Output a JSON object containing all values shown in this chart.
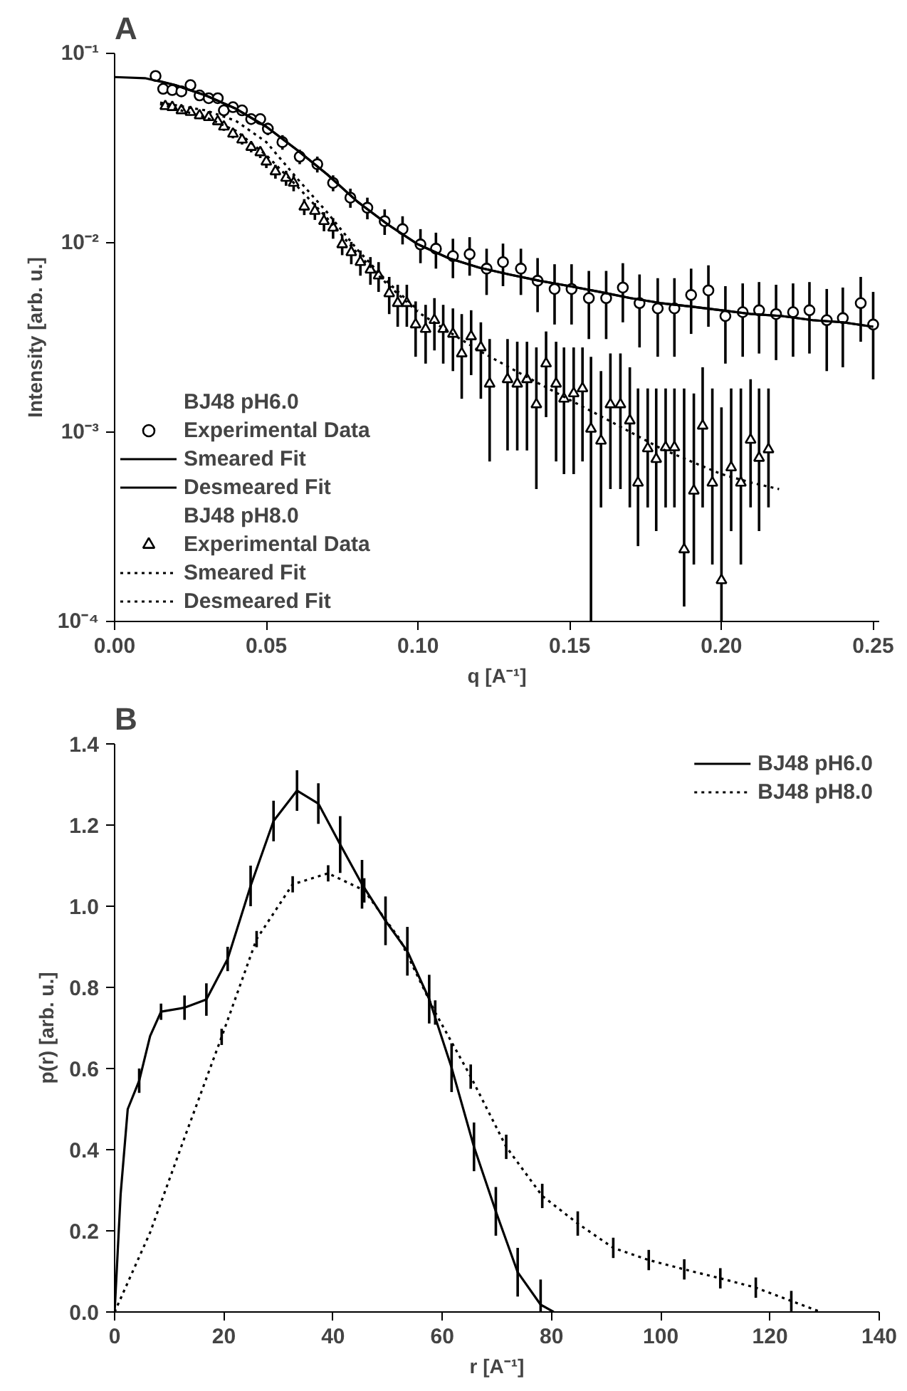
{
  "chart_data": [
    {
      "type": "scatter",
      "title": "A",
      "xlabel": "q [A⁻¹]",
      "ylabel": "Intensity [arb. u.]",
      "log": "y",
      "xlim": [
        0,
        0.252
      ],
      "ylim": [
        0.0001,
        0.1
      ],
      "xticks": [
        {
          "value": 0,
          "label": "0.00"
        },
        {
          "value": 0.05,
          "label": "0.05"
        },
        {
          "value": 0.1,
          "label": "0.10"
        },
        {
          "value": 0.15,
          "label": "0.15"
        },
        {
          "value": 0.2,
          "label": "0.20"
        },
        {
          "value": 0.25,
          "label": "0.25"
        }
      ],
      "yticks": [
        {
          "value": 0.0001,
          "label": "10⁻⁴"
        },
        {
          "value": 0.001,
          "label": "10⁻³"
        },
        {
          "value": 0.01,
          "label": "10⁻²"
        },
        {
          "value": 0.1,
          "label": "10⁻¹"
        }
      ],
      "legend": "bottom left",
      "legend_title": [
        "BJ48 pH6.0",
        "BJ48 pH8.0"
      ],
      "grid": false,
      "series": [
        {
          "name": "Experimental Data",
          "marker": "circle",
          "color": "#000000",
          "x": [
            0.0135,
            0.016,
            0.019,
            0.022,
            0.025,
            0.028,
            0.031,
            0.034,
            0.036,
            0.039,
            0.042,
            0.045,
            0.048,
            0.0505,
            0.0553,
            0.061,
            0.0668,
            0.072,
            0.0777,
            0.0833,
            0.089,
            0.0949,
            0.1008,
            0.1059,
            0.1115,
            0.117,
            0.1226,
            0.128,
            0.1339,
            0.1394,
            0.145,
            0.1506,
            0.1563,
            0.162,
            0.1675,
            0.173,
            0.179,
            0.1845,
            0.19,
            0.1957,
            0.2013,
            0.207,
            0.2124,
            0.218,
            0.2236,
            0.229,
            0.2347,
            0.24,
            0.2459,
            0.25
          ],
          "values": [
            0.076,
            0.065,
            0.064,
            0.063,
            0.068,
            0.06,
            0.058,
            0.058,
            0.05,
            0.052,
            0.05,
            0.045,
            0.045,
            0.04,
            0.034,
            0.0285,
            0.026,
            0.0207,
            0.0173,
            0.0153,
            0.013,
            0.0118,
            0.0098,
            0.0093,
            0.0085,
            0.0087,
            0.0073,
            0.0079,
            0.0073,
            0.0063,
            0.0057,
            0.0057,
            0.0051,
            0.0051,
            0.0058,
            0.0048,
            0.0045,
            0.0045,
            0.0053,
            0.0056,
            0.0041,
            0.0043,
            0.0044,
            0.0042,
            0.0043,
            0.0044,
            0.0039,
            0.004,
            0.0048,
            0.0037
          ],
          "errors": [
            0.003,
            0.003,
            0.003,
            0.003,
            0.003,
            0.003,
            0.003,
            0.003,
            0.003,
            0.003,
            0.003,
            0.003,
            0.003,
            0.003,
            0.003,
            0.0025,
            0.0025,
            0.002,
            0.002,
            0.002,
            0.002,
            0.002,
            0.002,
            0.002,
            0.002,
            0.002,
            0.002,
            0.002,
            0.002,
            0.002,
            0.002,
            0.002,
            0.002,
            0.002,
            0.002,
            0.002,
            0.002,
            0.002,
            0.002,
            0.002,
            0.0018,
            0.0018,
            0.0018,
            0.0018,
            0.0018,
            0.0018,
            0.0018,
            0.0018,
            0.0018,
            0.0018
          ]
        },
        {
          "name": "Smeared Fit",
          "type": "line",
          "line_style": "solid",
          "color": "#000000",
          "x": [
            0.014,
            0.02,
            0.03,
            0.04,
            0.05,
            0.06,
            0.07,
            0.08,
            0.09,
            0.1,
            0.11,
            0.12,
            0.13,
            0.14,
            0.15,
            0.16,
            0.17,
            0.18,
            0.19,
            0.2,
            0.21,
            0.22,
            0.23,
            0.24,
            0.25
          ],
          "values": [
            0.072,
            0.068,
            0.06,
            0.051,
            0.041,
            0.031,
            0.023,
            0.0165,
            0.0125,
            0.0098,
            0.0083,
            0.0074,
            0.0068,
            0.0063,
            0.0059,
            0.0055,
            0.0051,
            0.0048,
            0.0046,
            0.0044,
            0.0042,
            0.0041,
            0.0039,
            0.0038,
            0.0036
          ]
        },
        {
          "name": "Desmeared Fit",
          "type": "line",
          "line_style": "solid",
          "color": "#000000",
          "x": [
            0,
            0.01,
            0.02,
            0.03,
            0.04,
            0.05,
            0.06,
            0.07,
            0.08,
            0.09,
            0.1,
            0.11,
            0.12,
            0.13,
            0.14,
            0.15,
            0.16,
            0.17,
            0.18,
            0.19,
            0.2,
            0.21,
            0.22,
            0.23,
            0.24,
            0.25
          ],
          "values": [
            0.075,
            0.074,
            0.068,
            0.06,
            0.051,
            0.041,
            0.031,
            0.023,
            0.0165,
            0.0125,
            0.0098,
            0.0083,
            0.0074,
            0.0068,
            0.0063,
            0.0059,
            0.0055,
            0.0051,
            0.0048,
            0.0046,
            0.0044,
            0.0042,
            0.0041,
            0.0039,
            0.0038,
            0.0036
          ]
        },
        {
          "name": "Experimental Data",
          "marker": "triangle",
          "color": "#000000",
          "x": [
            0.0167,
            0.019,
            0.022,
            0.025,
            0.028,
            0.031,
            0.034,
            0.036,
            0.039,
            0.042,
            0.045,
            0.048,
            0.05,
            0.053,
            0.0565,
            0.059,
            0.0625,
            0.066,
            0.069,
            0.072,
            0.075,
            0.078,
            0.081,
            0.0843,
            0.087,
            0.0905,
            0.0933,
            0.0963,
            0.0992,
            0.1025,
            0.1054,
            0.1083,
            0.1115,
            0.1144,
            0.1175,
            0.1207,
            0.1236,
            0.1295,
            0.1327,
            0.1359,
            0.139,
            0.1422,
            0.1455,
            0.1481,
            0.1513,
            0.1542,
            0.157,
            0.1603,
            0.1634,
            0.1667,
            0.1698,
            0.1725,
            0.1757,
            0.1785,
            0.1816,
            0.1845,
            0.1877,
            0.1909,
            0.1938,
            0.197,
            0.2,
            0.2032,
            0.2064,
            0.2096,
            0.2124,
            0.2155
          ],
          "values": [
            0.0526,
            0.052,
            0.05,
            0.049,
            0.047,
            0.046,
            0.0437,
            0.041,
            0.0376,
            0.035,
            0.032,
            0.03,
            0.0268,
            0.0238,
            0.022,
            0.0207,
            0.0155,
            0.0147,
            0.013,
            0.012,
            0.0098,
            0.0089,
            0.0079,
            0.0072,
            0.0067,
            0.0054,
            0.0048,
            0.0048,
            0.0037,
            0.0035,
            0.0039,
            0.0035,
            0.0033,
            0.0026,
            0.0032,
            0.0028,
            0.0018,
            0.0019,
            0.0018,
            0.0019,
            0.0014,
            0.0023,
            0.0018,
            0.0015,
            0.0016,
            0.0017,
            0.00104,
            0.0009,
            0.0014,
            0.0014,
            0.00115,
            0.00054,
            0.00082,
            0.00072,
            0.00083,
            0.00083,
            0.00024,
            0.00049,
            0.00108,
            0.00054,
            0.000165,
            0.00065,
            0.00054,
            0.00091,
            0.00073,
            0.00081
          ],
          "errors": [
            0.002,
            0.002,
            0.002,
            0.002,
            0.002,
            0.002,
            0.002,
            0.002,
            0.002,
            0.002,
            0.002,
            0.002,
            0.002,
            0.002,
            0.002,
            0.002,
            0.0015,
            0.0015,
            0.0015,
            0.0015,
            0.0012,
            0.0012,
            0.0012,
            0.0012,
            0.0012,
            0.0012,
            0.0012,
            0.0012,
            0.0012,
            0.0012,
            0.0012,
            0.0012,
            0.0012,
            [
              0.0015,
              0.0042
            ],
            0.0012,
            [
              0.0015,
              0.0038
            ],
            [
              0.0007,
              0.0031
            ],
            [
              0.0008,
              0.0031
            ],
            [
              0.0008,
              0.003
            ],
            [
              0.0008,
              0.003
            ],
            [
              0.0005,
              0.0028
            ],
            [
              0.0012,
              0.0034
            ],
            [
              0.0007,
              0.003
            ],
            [
              0.0006,
              0.0028
            ],
            [
              0.0006,
              0.0028
            ],
            [
              0.0007,
              0.0028
            ],
            [
              0.0001,
              0.0025
            ],
            [
              0.0004,
              0.0021
            ],
            [
              0.0005,
              0.0026
            ],
            [
              0.0005,
              0.0026
            ],
            [
              0.0004,
              0.0022
            ],
            [
              0.00025,
              0.0017
            ],
            [
              0.0004,
              0.0017
            ],
            [
              0.0003,
              0.0017
            ],
            [
              0.0004,
              0.0017
            ],
            [
              0.0004,
              0.0017
            ],
            [
              0.00012,
              0.0017
            ],
            [
              0.0002,
              0.0016
            ],
            [
              0.0004,
              0.0022
            ],
            [
              0.0002,
              0.0017
            ],
            [
              8e-05,
              0.00135
            ],
            [
              0.0003,
              0.0017
            ],
            [
              0.0002,
              0.0017
            ],
            [
              0.0004,
              0.0019
            ],
            [
              0.0003,
              0.0017
            ],
            [
              0.0004,
              0.0017
            ]
          ]
        },
        {
          "name": "Smeared Fit",
          "type": "line",
          "line_style": "dotted",
          "color": "#000000",
          "x": [
            0.015,
            0.02,
            0.03,
            0.04,
            0.05,
            0.06,
            0.07,
            0.08,
            0.09,
            0.1,
            0.11,
            0.12,
            0.13,
            0.14,
            0.15,
            0.16,
            0.17,
            0.18,
            0.19,
            0.2,
            0.21,
            0.219
          ],
          "values": [
            0.054,
            0.051,
            0.046,
            0.039,
            0.029,
            0.02,
            0.0135,
            0.0088,
            0.006,
            0.0043,
            0.0034,
            0.0027,
            0.0022,
            0.0018,
            0.00148,
            0.00122,
            0.001,
            0.00082,
            0.0007,
            0.0006,
            0.00054,
            0.0005
          ]
        },
        {
          "name": "Desmeared Fit",
          "type": "line",
          "line_style": "dotted",
          "color": "#000000",
          "x": [
            0.015,
            0.03,
            0.04,
            0.05,
            0.06,
            0.07,
            0.08,
            0.09,
            0.1
          ],
          "values": [
            0.055,
            0.05,
            0.044,
            0.034,
            0.022,
            0.0145,
            0.0092,
            0.0062,
            0.0044
          ]
        }
      ]
    },
    {
      "type": "line",
      "title": "B",
      "xlabel": "r [A⁻¹]",
      "ylabel": "p(r) [arb. u.]",
      "xlim": [
        0,
        140
      ],
      "ylim": [
        0,
        1.4
      ],
      "xticks": [
        0,
        20,
        40,
        60,
        80,
        100,
        120,
        140
      ],
      "yticks": [
        {
          "value": 0,
          "label": "0.0"
        },
        {
          "value": 0.2,
          "label": "0.2"
        },
        {
          "value": 0.4,
          "label": "0.4"
        },
        {
          "value": 0.6,
          "label": "0.6"
        },
        {
          "value": 0.8,
          "label": "0.8"
        },
        {
          "value": 1,
          "label": "1.0"
        },
        {
          "value": 1.2,
          "label": "1.2"
        },
        {
          "value": 1.4,
          "label": "1.4"
        }
      ],
      "legend": "top right",
      "grid": false,
      "series": [
        {
          "name": "BJ48 pH6.0",
          "line_style": "solid",
          "color": "#000000",
          "x": [
            0,
            1.1,
            2.4,
            4.5,
            6.5,
            8.5,
            12.8,
            16.8,
            20.7,
            24.9,
            29.1,
            33.4,
            37.3,
            41.3,
            45.3,
            49.6,
            53.6,
            57.6,
            61.7,
            65.8,
            69.8,
            73.8,
            78.0,
            80.4
          ],
          "values": [
            0,
            0.29,
            0.5,
            0.57,
            0.68,
            0.74,
            0.75,
            0.77,
            0.87,
            1.05,
            1.21,
            1.285,
            1.253,
            1.152,
            1.054,
            0.964,
            0.889,
            0.771,
            0.602,
            0.407,
            0.248,
            0.098,
            0.018,
            0
          ],
          "errors": [
            null,
            null,
            null,
            0.03,
            null,
            0.02,
            0.03,
            0.04,
            0.03,
            0.05,
            0.05,
            0.05,
            0.05,
            0.07,
            0.06,
            0.06,
            0.06,
            0.06,
            0.06,
            0.06,
            0.06,
            0.06,
            [
              0,
              0.08
            ],
            null
          ]
        },
        {
          "name": "BJ48 pH8.0",
          "line_style": "dotted",
          "color": "#000000",
          "x": [
            0,
            6.5,
            13,
            19.6,
            26,
            32.6,
            39.1,
            45.7,
            52.2,
            58.7,
            65.2,
            71.7,
            78.3,
            84.8,
            91.3,
            97.8,
            104.3,
            110.9,
            117.4,
            123.9,
            129.3
          ],
          "values": [
            0,
            0.196,
            0.437,
            0.678,
            0.919,
            1.054,
            1.081,
            1.039,
            0.919,
            0.738,
            0.58,
            0.407,
            0.286,
            0.218,
            0.158,
            0.128,
            0.105,
            0.083,
            0.06,
            0.027,
            0
          ],
          "errors": [
            null,
            null,
            null,
            0.02,
            0.02,
            0.02,
            0.02,
            0.03,
            null,
            0.03,
            0.03,
            0.03,
            0.03,
            0.03,
            0.025,
            0.025,
            0.025,
            0.025,
            0.025,
            0.025,
            null
          ]
        }
      ]
    }
  ]
}
